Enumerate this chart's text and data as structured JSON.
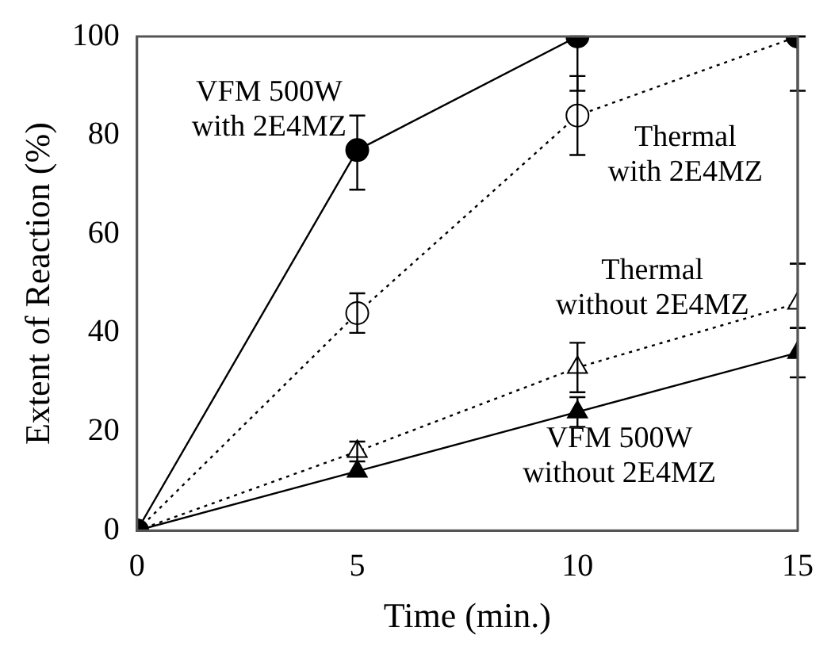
{
  "chart_data": {
    "type": "line",
    "xlabel": "Time (min.)",
    "ylabel": "Extent of Reaction (%)",
    "x": [
      0,
      5,
      10,
      15
    ],
    "xlim": [
      0,
      15
    ],
    "xticks": [
      0,
      5,
      10,
      15
    ],
    "ylim": [
      0,
      100
    ],
    "yticks": [
      0,
      20,
      40,
      60,
      80,
      100
    ],
    "grid": false,
    "legend": false,
    "series": [
      {
        "name": "VFM 500W with 2E4MZ",
        "color": "#000000",
        "marker": "circle",
        "line_style": "solid",
        "values": [
          0,
          77,
          100,
          100
        ],
        "errors": [
          null,
          [
            69,
            84
          ],
          [
            89,
            100
          ],
          [
            89,
            100
          ]
        ]
      },
      {
        "name": "Thermal with 2E4MZ",
        "color": "#000000",
        "marker": "circle",
        "line_style": "dotted",
        "values": [
          0,
          44,
          84,
          100
        ],
        "errors": [
          null,
          [
            40,
            48
          ],
          [
            76,
            92
          ],
          [
            54,
            100
          ]
        ]
      },
      {
        "name": "Thermal without 2E4MZ",
        "color": "#000000",
        "marker": "triangle",
        "line_style": "dotted",
        "values": [
          0,
          16,
          33,
          46
        ],
        "errors": [
          null,
          [
            14,
            18
          ],
          [
            28,
            38
          ],
          [
            41,
            54
          ]
        ]
      },
      {
        "name": "VFM 500W without 2E4MZ",
        "color": "#000000",
        "marker": "triangle",
        "line_style": "solid",
        "values": [
          0,
          12,
          24,
          36
        ],
        "errors": [
          null,
          null,
          [
            21,
            27
          ],
          [
            31,
            41
          ]
        ]
      }
    ]
  }
}
